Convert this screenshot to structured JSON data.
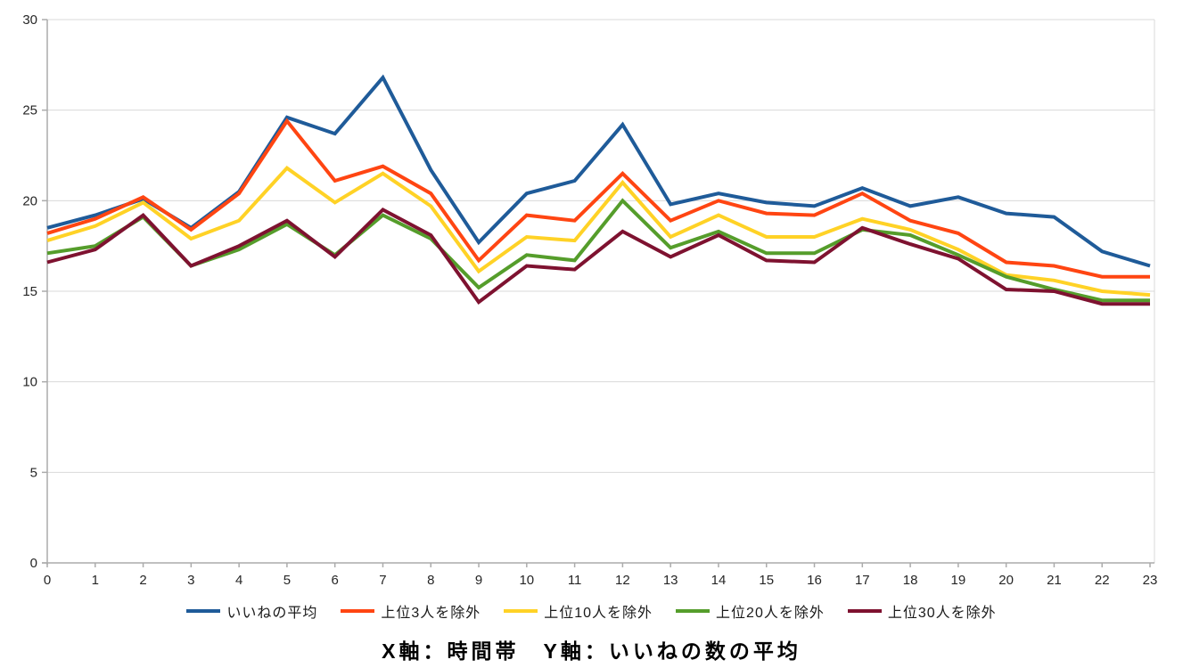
{
  "chart_data": {
    "type": "line",
    "x": [
      0,
      1,
      2,
      3,
      4,
      5,
      6,
      7,
      8,
      9,
      10,
      11,
      12,
      13,
      14,
      15,
      16,
      17,
      18,
      19,
      20,
      21,
      22,
      23
    ],
    "series": [
      {
        "name": "いいねの平均",
        "color": "#1F5B99",
        "values": [
          18.5,
          19.2,
          20.1,
          18.5,
          20.5,
          24.6,
          23.7,
          26.8,
          21.7,
          17.7,
          20.4,
          21.1,
          24.2,
          19.8,
          20.4,
          19.9,
          19.7,
          20.7,
          19.7,
          20.2,
          19.3,
          19.1,
          17.2,
          16.4
        ]
      },
      {
        "name": "上位3人を除外",
        "color": "#FF4512",
        "values": [
          18.2,
          19.0,
          20.2,
          18.4,
          20.4,
          24.4,
          21.1,
          21.9,
          20.4,
          16.7,
          19.2,
          18.9,
          21.5,
          18.9,
          20.0,
          19.3,
          19.2,
          20.4,
          18.9,
          18.2,
          16.6,
          16.4,
          15.8,
          15.8
        ]
      },
      {
        "name": "上位10人を除外",
        "color": "#FFD226",
        "values": [
          17.8,
          18.6,
          19.9,
          17.9,
          18.9,
          21.8,
          19.9,
          21.5,
          19.7,
          16.1,
          18.0,
          17.8,
          21.0,
          18.0,
          19.2,
          18.0,
          18.0,
          19.0,
          18.4,
          17.3,
          15.9,
          15.6,
          15.0,
          14.8
        ]
      },
      {
        "name": "上位20人を除外",
        "color": "#559D2B",
        "values": [
          17.1,
          17.5,
          19.1,
          16.4,
          17.3,
          18.7,
          17.0,
          19.2,
          17.9,
          15.2,
          17.0,
          16.7,
          20.0,
          17.4,
          18.3,
          17.1,
          17.1,
          18.4,
          18.1,
          17.0,
          15.8,
          15.1,
          14.5,
          14.5
        ]
      },
      {
        "name": "上位30人を除外",
        "color": "#7E1230",
        "values": [
          16.6,
          17.3,
          19.2,
          16.4,
          17.5,
          18.9,
          16.9,
          19.5,
          18.1,
          14.4,
          16.4,
          16.2,
          18.3,
          16.9,
          18.1,
          16.7,
          16.6,
          18.5,
          17.6,
          16.8,
          15.1,
          15.0,
          14.3,
          14.3
        ]
      }
    ],
    "ylim": [
      0,
      30
    ],
    "yticks": [
      0,
      5,
      10,
      15,
      20,
      25,
      30
    ],
    "xticks": [
      0,
      1,
      2,
      3,
      4,
      5,
      6,
      7,
      8,
      9,
      10,
      11,
      12,
      13,
      14,
      15,
      16,
      17,
      18,
      19,
      20,
      21,
      22,
      23
    ],
    "xlabel": "時間帯",
    "ylabel": "いいねの数の平均",
    "caption": "X軸：時間帯　Y軸：いいねの数の平均",
    "grid": "horizontal",
    "legend_position": "bottom",
    "colors": {
      "gridline": "#D9D9D9",
      "axis": "#ABABAB",
      "tick_label": "#262626",
      "background": "#FFFFFF"
    }
  }
}
